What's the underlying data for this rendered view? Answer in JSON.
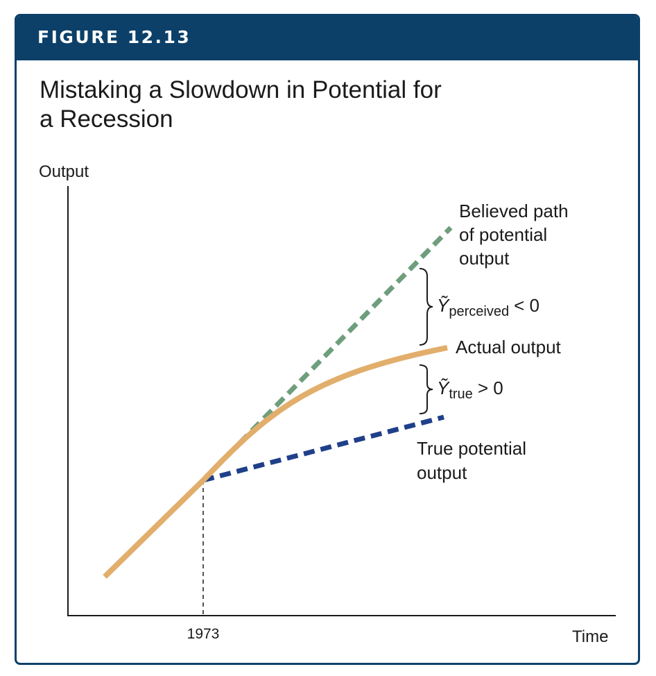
{
  "figure": {
    "label": "FIGURE 12.13",
    "title_line1": "Mistaking a Slowdown in Potential for",
    "title_line2": "a Recession"
  },
  "axes": {
    "y_label": "Output",
    "x_label": "Time",
    "x_marker": "1973"
  },
  "lines": {
    "believed": {
      "line1": "Believed path",
      "line2": "of potential",
      "line3": "output",
      "color": "#6f9e7d"
    },
    "actual": {
      "label": "Actual output",
      "color": "#e2ae6c"
    },
    "true_potential": {
      "line1": "True potential",
      "line2": "output",
      "color": "#1f3f8a"
    }
  },
  "gaps": {
    "perceived": {
      "symbol": "Ỹ",
      "subscript": "perceived",
      "relation": "< 0"
    },
    "true": {
      "symbol": "Ỹ",
      "subscript": "true",
      "relation": "> 0"
    }
  },
  "colors": {
    "header": "#0c4069",
    "frame": "#0c4069"
  }
}
